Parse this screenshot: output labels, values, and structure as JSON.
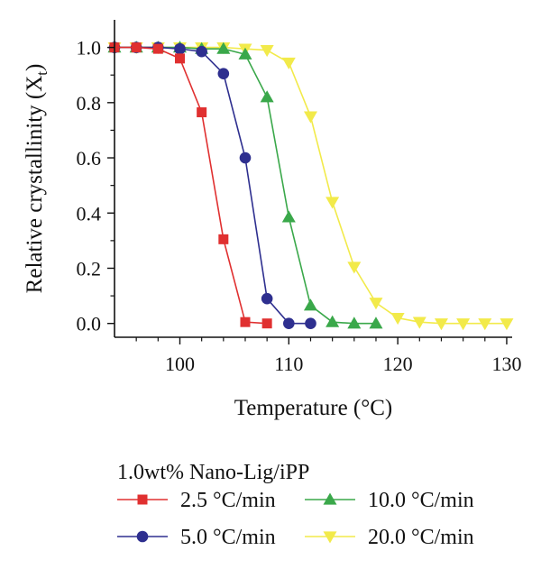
{
  "chart_data": {
    "type": "line",
    "xlabel": "Temperature (°C)",
    "ylabel_main": "Relative crystallinity (X",
    "ylabel_sub": "t",
    "ylabel_end": ")",
    "xlim": [
      94,
      130.5
    ],
    "ylim": [
      -0.05,
      1.1
    ],
    "xticks": [
      100,
      110,
      120,
      130
    ],
    "xminor": [
      96,
      98,
      102,
      104,
      106,
      108,
      112,
      114,
      116,
      118,
      122,
      124,
      126,
      128
    ],
    "yticks": [
      0.0,
      0.2,
      0.4,
      0.6,
      0.8,
      1.0
    ],
    "ytick_labels": [
      "0.0",
      "0.2",
      "0.4",
      "0.6",
      "0.8",
      "1.0"
    ],
    "yminor": [
      0.1,
      0.3,
      0.5,
      0.7,
      0.9
    ],
    "grid": false,
    "legend_title": "1.0wt% Nano-Lig/iPP",
    "legend_placement": "bottom",
    "series": [
      {
        "name": "2.5 °C/min",
        "marker": "square",
        "color": "#e03030",
        "x": [
          94,
          96,
          98,
          100,
          102,
          104,
          106,
          108
        ],
        "y": [
          1.0,
          1.0,
          0.995,
          0.96,
          0.765,
          0.305,
          0.005,
          0.0
        ]
      },
      {
        "name": "5.0 °C/min",
        "marker": "circle",
        "color": "#2e2f8f",
        "x": [
          94,
          96,
          98,
          100,
          102,
          104,
          106,
          108,
          110,
          112
        ],
        "y": [
          1.0,
          1.0,
          1.0,
          0.995,
          0.985,
          0.905,
          0.6,
          0.09,
          0.0,
          0.0
        ]
      },
      {
        "name": "10.0 °C/min",
        "marker": "triangle-up",
        "color": "#3aa84a",
        "x": [
          94,
          96,
          98,
          100,
          102,
          104,
          106,
          108,
          110,
          112,
          114,
          116,
          118
        ],
        "y": [
          1.0,
          1.0,
          1.0,
          1.0,
          0.995,
          0.995,
          0.975,
          0.82,
          0.385,
          0.065,
          0.005,
          0.0,
          0.0
        ]
      },
      {
        "name": "20.0 °C/min",
        "marker": "triangle-down",
        "color": "#f2ea4a",
        "x": [
          94,
          96,
          98,
          100,
          102,
          104,
          106,
          108,
          110,
          112,
          114,
          116,
          118,
          120,
          122,
          124,
          126,
          128,
          130
        ],
        "y": [
          1.0,
          1.0,
          1.0,
          1.0,
          1.0,
          1.0,
          0.995,
          0.99,
          0.945,
          0.75,
          0.44,
          0.205,
          0.075,
          0.02,
          0.005,
          0.0,
          0.0,
          0.0,
          0.0
        ]
      }
    ]
  }
}
